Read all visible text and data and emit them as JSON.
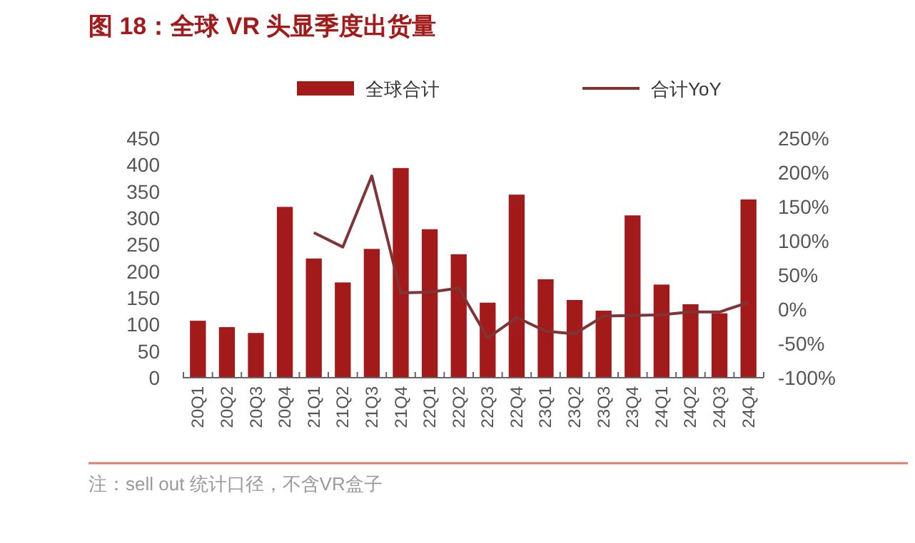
{
  "chart_data": {
    "type": "bar",
    "title": "图 18：全球 VR 头显季度出货量",
    "categories": [
      "20Q1",
      "20Q2",
      "20Q3",
      "20Q4",
      "21Q1",
      "21Q2",
      "21Q3",
      "21Q4",
      "22Q1",
      "22Q2",
      "22Q3",
      "22Q4",
      "23Q1",
      "23Q2",
      "23Q3",
      "23Q4",
      "24Q1",
      "24Q2",
      "24Q3",
      "24Q4"
    ],
    "series": [
      {
        "name": "全球合计",
        "color": "#a31a1a",
        "values": [
          107,
          95,
          84,
          321,
          224,
          179,
          242,
          394,
          279,
          232,
          141,
          344,
          185,
          146,
          126,
          305,
          175,
          138,
          121,
          335
        ]
      },
      {
        "name": "合计YoY",
        "color": "#7f3535",
        "type": "line",
        "axis": "y2",
        "values": [
          null,
          null,
          null,
          null,
          112,
          91,
          195,
          24,
          25,
          31,
          -42,
          -12,
          -32,
          -36,
          -10,
          -9,
          -8,
          -4,
          -4,
          10
        ]
      }
    ],
    "ylim": [
      0,
      450
    ],
    "yticks": [
      0,
      50,
      100,
      150,
      200,
      250,
      300,
      350,
      400,
      450
    ],
    "y2lim": [
      -100,
      250
    ],
    "y2ticks": [
      {
        "value": -100,
        "label": "-100%"
      },
      {
        "value": -50,
        "label": "-50%"
      },
      {
        "value": 0,
        "label": "0%"
      },
      {
        "value": 50,
        "label": "50%"
      },
      {
        "value": 100,
        "label": "100%"
      },
      {
        "value": 150,
        "label": "150%"
      },
      {
        "value": 200,
        "label": "200%"
      },
      {
        "value": 250,
        "label": "250%"
      }
    ],
    "legend": "top",
    "grid": false,
    "annotations": [
      "注：sell out 统计口径，不含VR盒子"
    ]
  }
}
